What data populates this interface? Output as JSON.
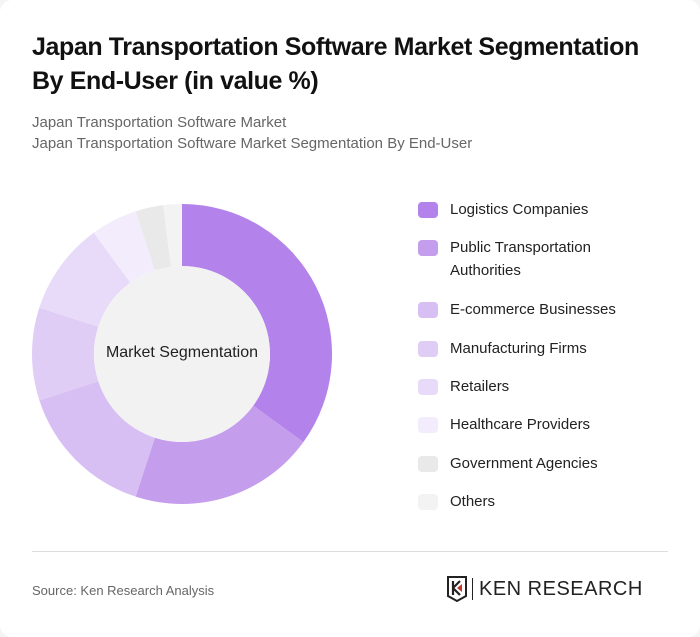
{
  "header": {
    "title": "Japan Transportation Software Market Segmentation By End-User (in value %)",
    "subtitle1": "Japan Transportation Software Market",
    "subtitle2": "Japan Transportation Software Market Segmentation By End-User"
  },
  "chart": {
    "center_label": "Market Segmentation"
  },
  "footer": {
    "source": "Source: Ken Research Analysis",
    "logo_text": "KEN RESEARCH"
  },
  "legend": [
    {
      "label": "Logistics Companies",
      "color": "#b382ea"
    },
    {
      "label": "Public Transportation Authorities",
      "color": "#c59ded"
    },
    {
      "label": "E-commerce Businesses",
      "color": "#d7bff4"
    },
    {
      "label": "Manufacturing Firms",
      "color": "#e0cdf6"
    },
    {
      "label": "Retailers",
      "color": "#e8dbf9"
    },
    {
      "label": "Healthcare Providers",
      "color": "#f3ecfc"
    },
    {
      "label": "Government Agencies",
      "color": "#e9e9e9"
    },
    {
      "label": "Others",
      "color": "#f3f3f3"
    }
  ],
  "chart_data": {
    "type": "pie",
    "title": "Japan Transportation Software Market Segmentation By End-User (in value %)",
    "center_label": "Market Segmentation",
    "categories": [
      "Logistics Companies",
      "Public Transportation Authorities",
      "E-commerce Businesses",
      "Manufacturing Firms",
      "Retailers",
      "Healthcare Providers",
      "Government Agencies",
      "Others"
    ],
    "values": [
      35,
      20,
      15,
      10,
      10,
      5,
      3,
      2
    ],
    "legend_position": "right",
    "donut": true
  }
}
